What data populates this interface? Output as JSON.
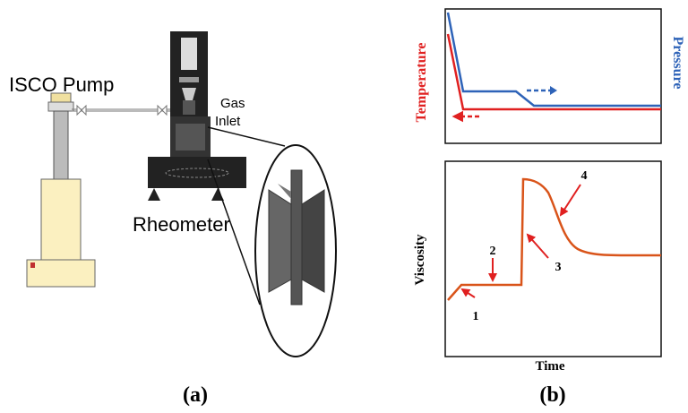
{
  "panel_a": {
    "label": "(a)",
    "pump_label": "ISCO Pump",
    "gas_inlet": [
      "Gas",
      "Inlet"
    ],
    "rheometer_label": "Rheometer"
  },
  "panel_b": {
    "label": "(b)",
    "top_plot": {
      "left_axis_label": "Temperature",
      "right_axis_label": "Pressure"
    },
    "bottom_plot": {
      "y_label": "Viscosity",
      "x_label": "Time",
      "markers": [
        "1",
        "2",
        "3",
        "4"
      ]
    }
  }
}
